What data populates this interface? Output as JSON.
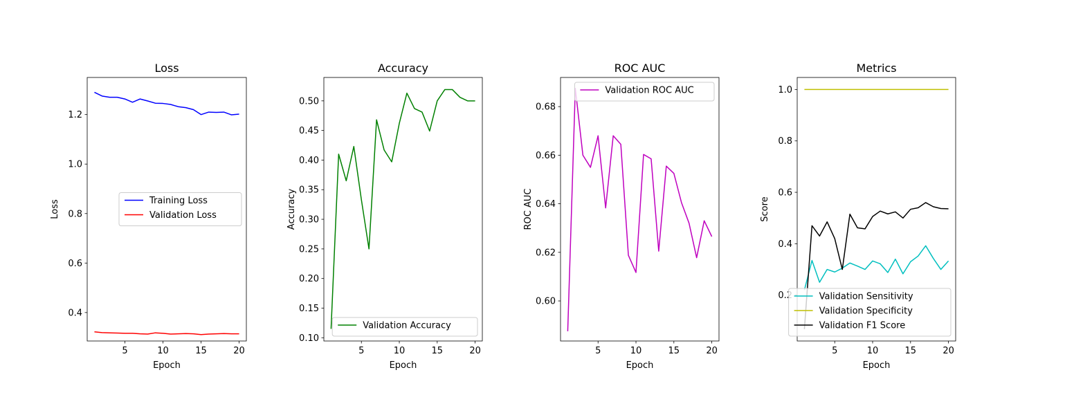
{
  "chart_data": [
    {
      "type": "line",
      "title": "Loss",
      "xlabel": "Epoch",
      "ylabel": "Loss",
      "xlim": [
        0.05,
        20.95
      ],
      "ylim": [
        0.285,
        1.35
      ],
      "xticks": [
        5,
        10,
        15,
        20
      ],
      "yticks": [
        0.4,
        0.6,
        0.8,
        1.0,
        1.2
      ],
      "ytick_decimals": 1,
      "legend": "center-right",
      "series": [
        {
          "name": "Training Loss",
          "color": "#0000ff",
          "x": [
            1,
            2,
            3,
            4,
            5,
            6,
            7,
            8,
            9,
            10,
            11,
            12,
            13,
            14,
            15,
            16,
            17,
            18,
            19,
            20
          ],
          "values": [
            1.29,
            1.275,
            1.27,
            1.27,
            1.263,
            1.25,
            1.263,
            1.255,
            1.246,
            1.245,
            1.241,
            1.232,
            1.228,
            1.22,
            1.2,
            1.21,
            1.209,
            1.21,
            1.199,
            1.202
          ]
        },
        {
          "name": "Validation Loss",
          "color": "#ff0000",
          "x": [
            1,
            2,
            3,
            4,
            5,
            6,
            7,
            8,
            9,
            10,
            11,
            12,
            13,
            14,
            15,
            16,
            17,
            18,
            19,
            20
          ],
          "values": [
            0.322,
            0.319,
            0.318,
            0.317,
            0.316,
            0.316,
            0.314,
            0.313,
            0.318,
            0.316,
            0.313,
            0.314,
            0.315,
            0.314,
            0.311,
            0.313,
            0.314,
            0.315,
            0.314,
            0.314
          ]
        }
      ]
    },
    {
      "type": "line",
      "title": "Accuracy",
      "xlabel": "Epoch",
      "ylabel": "Accuracy",
      "xlim": [
        0.05,
        20.95
      ],
      "ylim": [
        0.0945,
        0.5395
      ],
      "xticks": [
        5,
        10,
        15,
        20
      ],
      "yticks": [
        0.1,
        0.15,
        0.2,
        0.25,
        0.3,
        0.35,
        0.4,
        0.45,
        0.5
      ],
      "ytick_decimals": 2,
      "legend": "lower-right",
      "series": [
        {
          "name": "Validation Accuracy",
          "color": "#008000",
          "x": [
            1,
            2,
            3,
            4,
            5,
            6,
            7,
            8,
            9,
            10,
            11,
            12,
            13,
            14,
            15,
            16,
            17,
            18,
            19,
            20
          ],
          "values": [
            0.115,
            0.41,
            0.365,
            0.423,
            0.333,
            0.25,
            0.468,
            0.417,
            0.397,
            0.462,
            0.513,
            0.487,
            0.481,
            0.449,
            0.5,
            0.519,
            0.519,
            0.506,
            0.5,
            0.5
          ]
        }
      ]
    },
    {
      "type": "line",
      "title": "ROC AUC",
      "xlabel": "Epoch",
      "ylabel": "ROC AUC",
      "xlim": [
        0.05,
        20.95
      ],
      "ylim": [
        0.5835,
        0.692
      ],
      "xticks": [
        5,
        10,
        15,
        20
      ],
      "yticks": [
        0.6,
        0.62,
        0.64,
        0.66,
        0.68
      ],
      "ytick_decimals": 2,
      "legend": "upper-right",
      "series": [
        {
          "name": "Validation ROC AUC",
          "color": "#bf00bf",
          "x": [
            1,
            2,
            3,
            4,
            5,
            6,
            7,
            8,
            9,
            10,
            11,
            12,
            13,
            14,
            15,
            16,
            17,
            18,
            19,
            20
          ],
          "values": [
            0.5875,
            0.6875,
            0.66,
            0.655,
            0.668,
            0.6383,
            0.668,
            0.6645,
            0.6188,
            0.6117,
            0.6603,
            0.6585,
            0.6205,
            0.6555,
            0.6525,
            0.6405,
            0.632,
            0.6178,
            0.633,
            0.6265
          ]
        }
      ]
    },
    {
      "type": "line",
      "title": "Metrics",
      "xlabel": "Epoch",
      "ylabel": "Score",
      "xlim": [
        0.05,
        20.95
      ],
      "ylim": [
        0.0216,
        1.0468
      ],
      "xticks": [
        5,
        10,
        15,
        20
      ],
      "yticks": [
        0.2,
        0.4,
        0.6,
        0.8,
        1.0
      ],
      "ytick_decimals": 1,
      "legend": "lower-right",
      "series": [
        {
          "name": "Validation Sensitivity",
          "color": "#00bfbf",
          "x": [
            1,
            2,
            3,
            4,
            5,
            6,
            7,
            8,
            9,
            10,
            11,
            12,
            13,
            14,
            15,
            16,
            17,
            18,
            19,
            20
          ],
          "values": [
            0.22,
            0.335,
            0.25,
            0.3,
            0.29,
            0.305,
            0.325,
            0.313,
            0.3,
            0.333,
            0.322,
            0.288,
            0.34,
            0.283,
            0.33,
            0.352,
            0.392,
            0.343,
            0.3,
            0.333
          ]
        },
        {
          "name": "Validation Specificity",
          "color": "#bfbf00",
          "x": [
            1,
            2,
            3,
            4,
            5,
            6,
            7,
            8,
            9,
            10,
            11,
            12,
            13,
            14,
            15,
            16,
            17,
            18,
            19,
            20
          ],
          "values": [
            1.0,
            1.0,
            1.0,
            1.0,
            1.0,
            1.0,
            1.0,
            1.0,
            1.0,
            1.0,
            1.0,
            1.0,
            1.0,
            1.0,
            1.0,
            1.0,
            1.0,
            1.0,
            1.0,
            1.0
          ]
        },
        {
          "name": "Validation F1 Score",
          "color": "#000000",
          "x": [
            1,
            2,
            3,
            4,
            5,
            6,
            7,
            8,
            9,
            10,
            11,
            12,
            13,
            14,
            15,
            16,
            17,
            18,
            19,
            20
          ],
          "values": [
            0.068,
            0.47,
            0.43,
            0.485,
            0.42,
            0.3,
            0.515,
            0.462,
            0.458,
            0.506,
            0.527,
            0.516,
            0.524,
            0.5,
            0.534,
            0.54,
            0.56,
            0.544,
            0.537,
            0.536
          ]
        }
      ]
    }
  ]
}
